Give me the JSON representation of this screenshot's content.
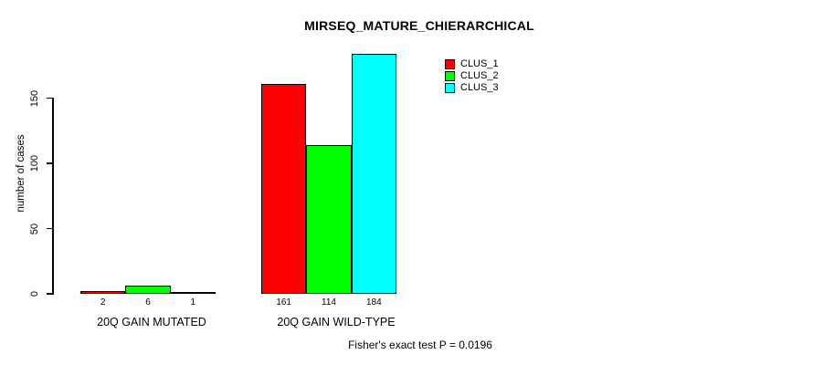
{
  "chart_data": {
    "type": "bar",
    "title": "MIRSEQ_MATURE_CHIERARCHICAL",
    "ylabel": "number of cases",
    "xlabel": "",
    "yticks": [
      0,
      50,
      100,
      150
    ],
    "ylim": [
      0,
      185
    ],
    "grid": false,
    "legend_position": "top-right",
    "categories": [
      "20Q GAIN MUTATED",
      "20Q GAIN WILD-TYPE"
    ],
    "series": [
      {
        "name": "CLUS_1",
        "color": "#FF0000",
        "values": [
          2,
          161
        ]
      },
      {
        "name": "CLUS_2",
        "color": "#00FF00",
        "values": [
          6,
          114
        ]
      },
      {
        "name": "CLUS_3",
        "color": "#00FFFF",
        "values": [
          1,
          184
        ]
      }
    ],
    "bar_value_labels": [
      [
        "2",
        "6",
        "1"
      ],
      [
        "161",
        "114",
        "184"
      ]
    ],
    "annotation": "Fisher's exact test P = 0.0196"
  },
  "colors": {
    "axis": "#000000",
    "text": "#000000",
    "background": "#FFFFFF"
  }
}
